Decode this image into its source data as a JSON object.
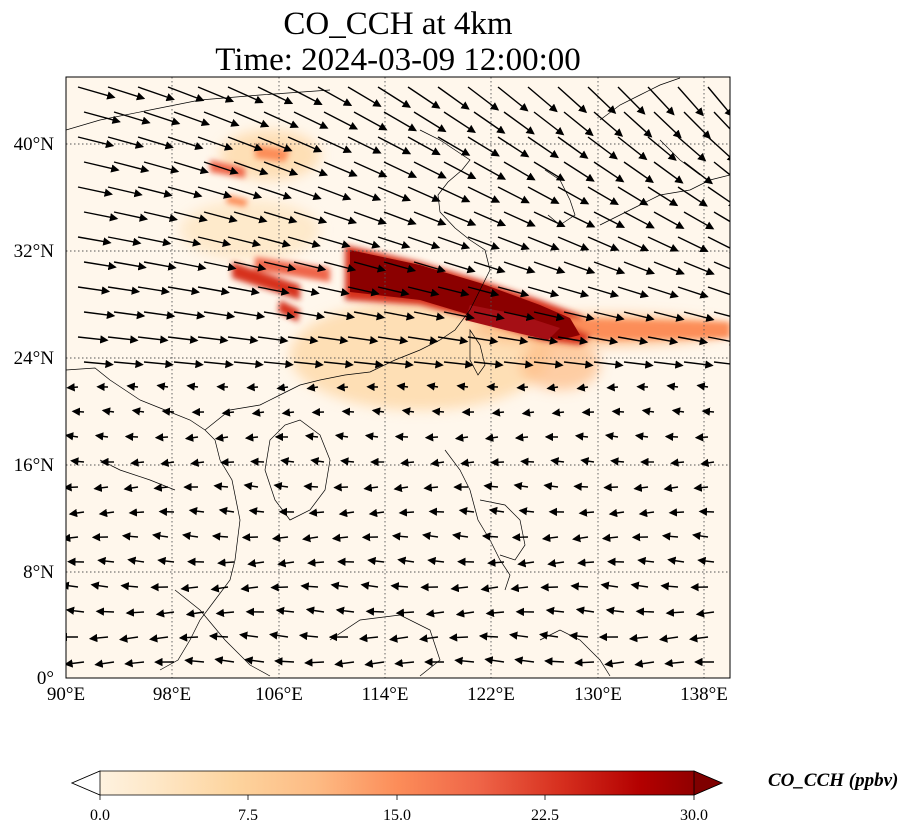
{
  "title": {
    "line1": "CO_CCH at 4km",
    "line2": "Time: 2024-03-09 12:00:00"
  },
  "map": {
    "extent": {
      "lon": [
        90,
        140
      ],
      "lat": [
        0,
        45
      ]
    },
    "x_ticks": [
      "90°E",
      "98°E",
      "106°E",
      "114°E",
      "122°E",
      "130°E",
      "138°E"
    ],
    "y_ticks": [
      "0°",
      "8°N",
      "16°N",
      "24°N",
      "32°N",
      "40°N"
    ],
    "x_tick_values": [
      90,
      98,
      106,
      114,
      122,
      130,
      138
    ],
    "y_tick_values": [
      0,
      8,
      16,
      24,
      32,
      40
    ],
    "gridlines": "dotted",
    "coastlines": true,
    "wind_vectors": true
  },
  "colorbar": {
    "label": "CO_CCH (ppbv)",
    "ticks": [
      "0.0",
      "7.5",
      "15.0",
      "22.5",
      "30.0"
    ],
    "min": 0,
    "max": 30,
    "colormap": "OrRd",
    "extend": "both",
    "colors": [
      "#fff7ec",
      "#fee8c8",
      "#fdd49e",
      "#fdbb84",
      "#fc8d59",
      "#ef6548",
      "#d7301f",
      "#b30000",
      "#7f0000"
    ]
  }
}
